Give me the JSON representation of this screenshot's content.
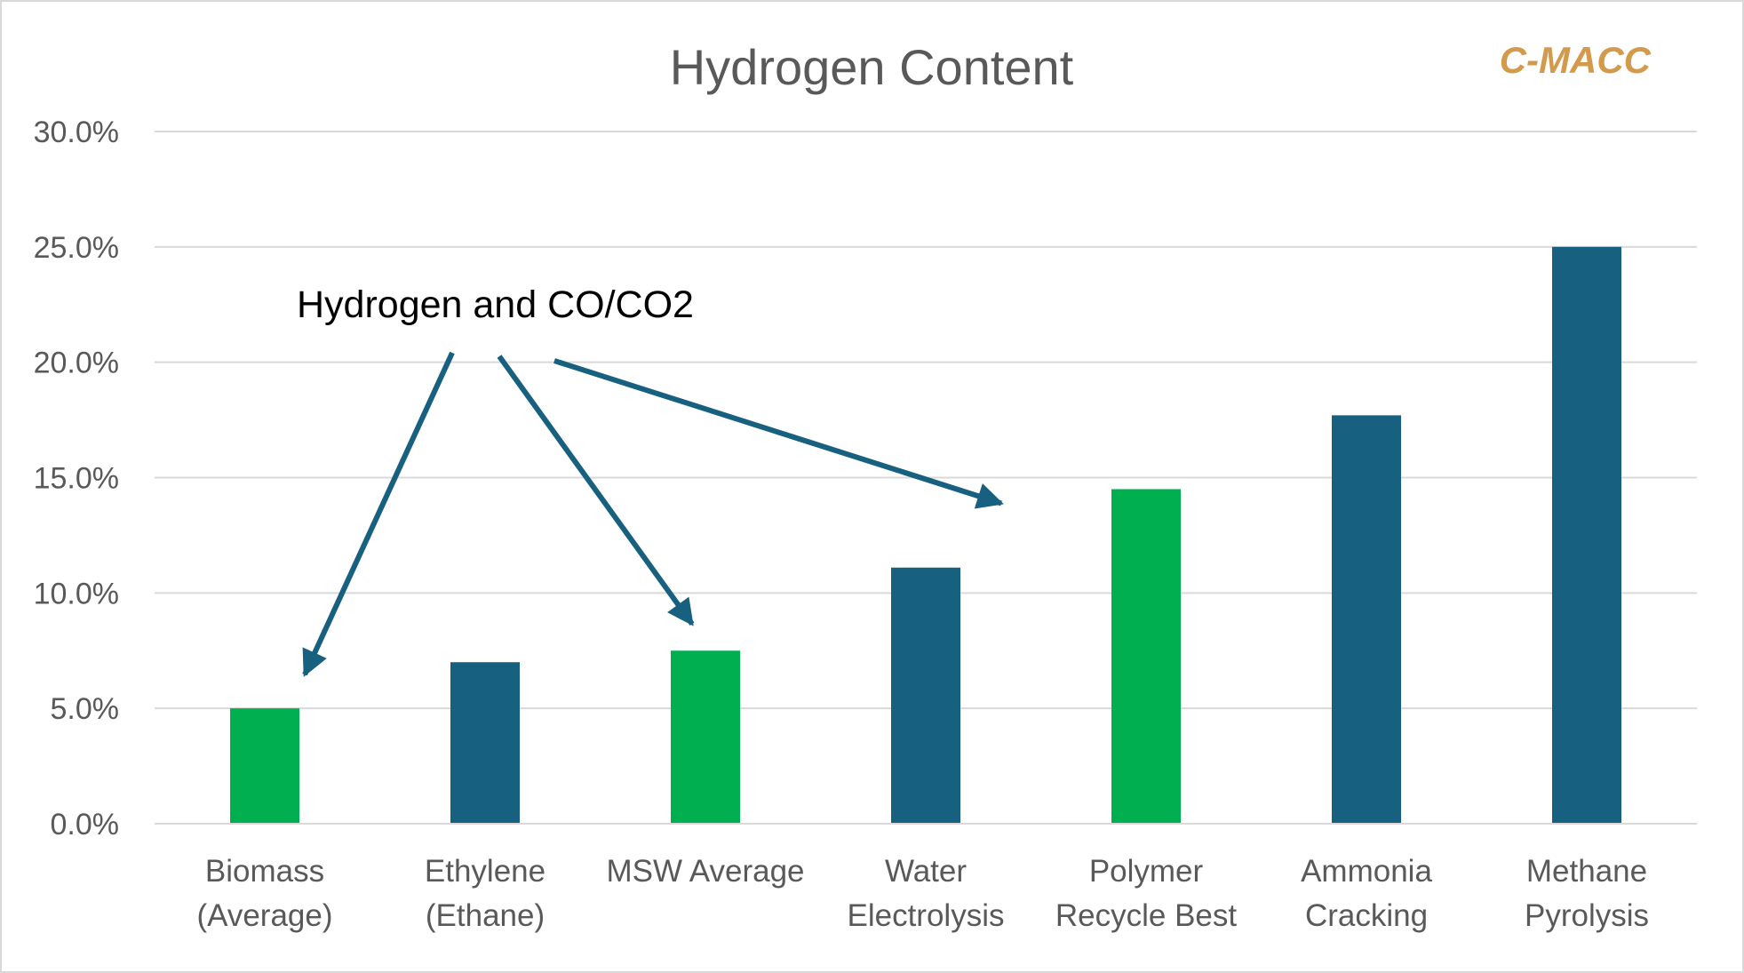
{
  "chart_data": {
    "type": "bar",
    "title": "Hydrogen Content",
    "brand": "C-MACC",
    "annotation": "Hydrogen and CO/CO2",
    "xlabel": "",
    "ylabel": "",
    "ylim": [
      0,
      30
    ],
    "ytick_values": [
      0,
      5,
      10,
      15,
      20,
      25,
      30
    ],
    "yticks": [
      "0.0%",
      "5.0%",
      "10.0%",
      "15.0%",
      "20.0%",
      "25.0%",
      "30.0%"
    ],
    "grid": true,
    "categories": [
      [
        "Biomass",
        "(Average)"
      ],
      [
        "Ethylene",
        "(Ethane)"
      ],
      [
        "MSW Average"
      ],
      [
        "Water",
        "Electrolysis"
      ],
      [
        "Polymer",
        "Recycle Best"
      ],
      [
        "Ammonia",
        "Cracking"
      ],
      [
        "Methane",
        "Pyrolysis"
      ]
    ],
    "values": [
      5.0,
      7.0,
      7.5,
      11.1,
      14.5,
      17.7,
      25.0
    ],
    "bar_colors": [
      "#00b050",
      "#17607f",
      "#00b050",
      "#17607f",
      "#00b050",
      "#17607f",
      "#17607f"
    ],
    "annotation_color": "#17607f",
    "arrow_targets": [
      "Biomass (Average)",
      "MSW Average",
      "Polymer Recycle Best"
    ]
  }
}
